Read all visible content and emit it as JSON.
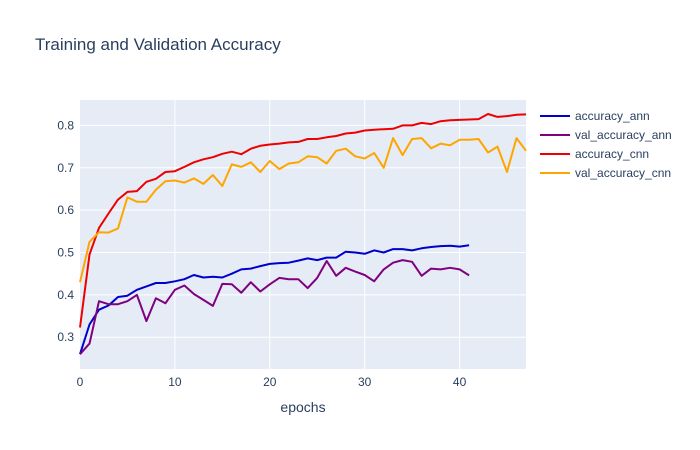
{
  "chart_data": {
    "type": "line",
    "title": "Training and Validation Accuracy",
    "xlabel": "epochs",
    "ylabel": "",
    "xlim": [
      0,
      47
    ],
    "ylim": [
      0.225,
      0.86
    ],
    "x_ticks": [
      0,
      10,
      20,
      30,
      40
    ],
    "y_ticks": [
      0.3,
      0.4,
      0.5,
      0.6,
      0.7,
      0.8
    ],
    "x_tick_labels": [
      "0",
      "10",
      "20",
      "30",
      "40"
    ],
    "y_tick_labels": [
      "0.3",
      "0.4",
      "0.5",
      "0.6",
      "0.7",
      "0.8"
    ],
    "grid": true,
    "legend_position": "right",
    "plot_bgcolor": "#e5ecf6",
    "series": [
      {
        "name": "accuracy_ann",
        "color": "#0000cd",
        "x": [
          0,
          1,
          2,
          3,
          4,
          5,
          6,
          7,
          8,
          9,
          10,
          11,
          12,
          13,
          14,
          15,
          16,
          17,
          18,
          19,
          20,
          21,
          22,
          23,
          24,
          25,
          26,
          27,
          28,
          29,
          30,
          31,
          32,
          33,
          34,
          35,
          36,
          37,
          38,
          39,
          40,
          41
        ],
        "y": [
          0.26,
          0.33,
          0.365,
          0.375,
          0.395,
          0.398,
          0.412,
          0.42,
          0.428,
          0.428,
          0.432,
          0.437,
          0.447,
          0.441,
          0.443,
          0.441,
          0.45,
          0.46,
          0.462,
          0.468,
          0.473,
          0.475,
          0.476,
          0.481,
          0.486,
          0.482,
          0.488,
          0.488,
          0.502,
          0.5,
          0.497,
          0.505,
          0.5,
          0.508,
          0.508,
          0.505,
          0.51,
          0.513,
          0.515,
          0.516,
          0.514,
          0.517
        ]
      },
      {
        "name": "val_accuracy_ann",
        "color": "#800080",
        "x": [
          0,
          1,
          2,
          3,
          4,
          5,
          6,
          7,
          8,
          9,
          10,
          11,
          12,
          13,
          14,
          15,
          16,
          17,
          18,
          19,
          20,
          21,
          22,
          23,
          24,
          25,
          26,
          27,
          28,
          29,
          30,
          31,
          32,
          33,
          34,
          35,
          36,
          37,
          38,
          39,
          40,
          41
        ],
        "y": [
          0.26,
          0.285,
          0.385,
          0.378,
          0.378,
          0.385,
          0.4,
          0.338,
          0.392,
          0.38,
          0.412,
          0.422,
          0.402,
          0.388,
          0.374,
          0.426,
          0.425,
          0.405,
          0.43,
          0.408,
          0.425,
          0.44,
          0.437,
          0.437,
          0.416,
          0.44,
          0.48,
          0.445,
          0.464,
          0.455,
          0.447,
          0.432,
          0.46,
          0.476,
          0.482,
          0.478,
          0.445,
          0.462,
          0.46,
          0.464,
          0.46,
          0.446
        ]
      },
      {
        "name": "accuracy_cnn",
        "color": "#ee0000",
        "x": [
          0,
          1,
          2,
          3,
          4,
          5,
          6,
          7,
          8,
          9,
          10,
          11,
          12,
          13,
          14,
          15,
          16,
          17,
          18,
          19,
          20,
          21,
          22,
          23,
          24,
          25,
          26,
          27,
          28,
          29,
          30,
          31,
          32,
          33,
          34,
          35,
          36,
          37,
          38,
          39,
          40,
          41,
          42,
          43,
          44,
          45,
          46,
          47
        ],
        "y": [
          0.323,
          0.495,
          0.558,
          0.592,
          0.625,
          0.643,
          0.645,
          0.667,
          0.674,
          0.69,
          0.692,
          0.702,
          0.713,
          0.72,
          0.725,
          0.733,
          0.738,
          0.732,
          0.745,
          0.752,
          0.755,
          0.757,
          0.76,
          0.761,
          0.768,
          0.768,
          0.772,
          0.775,
          0.781,
          0.783,
          0.788,
          0.79,
          0.791,
          0.792,
          0.8,
          0.8,
          0.806,
          0.803,
          0.81,
          0.812,
          0.813,
          0.814,
          0.815,
          0.827,
          0.82,
          0.822,
          0.825,
          0.826
        ]
      },
      {
        "name": "val_accuracy_cnn",
        "color": "#ffa500",
        "x": [
          0,
          1,
          2,
          3,
          4,
          5,
          6,
          7,
          8,
          9,
          10,
          11,
          12,
          13,
          14,
          15,
          16,
          17,
          18,
          19,
          20,
          21,
          22,
          23,
          24,
          25,
          26,
          27,
          28,
          29,
          30,
          31,
          32,
          33,
          34,
          35,
          36,
          37,
          38,
          39,
          40,
          41,
          42,
          43,
          44,
          45,
          46,
          47
        ],
        "y": [
          0.43,
          0.525,
          0.548,
          0.547,
          0.557,
          0.63,
          0.62,
          0.62,
          0.648,
          0.668,
          0.67,
          0.665,
          0.675,
          0.662,
          0.683,
          0.657,
          0.708,
          0.702,
          0.713,
          0.69,
          0.716,
          0.697,
          0.71,
          0.713,
          0.727,
          0.725,
          0.71,
          0.74,
          0.745,
          0.727,
          0.722,
          0.735,
          0.7,
          0.77,
          0.73,
          0.768,
          0.77,
          0.746,
          0.757,
          0.753,
          0.766,
          0.766,
          0.768,
          0.736,
          0.75,
          0.69,
          0.77,
          0.74
        ]
      }
    ]
  }
}
